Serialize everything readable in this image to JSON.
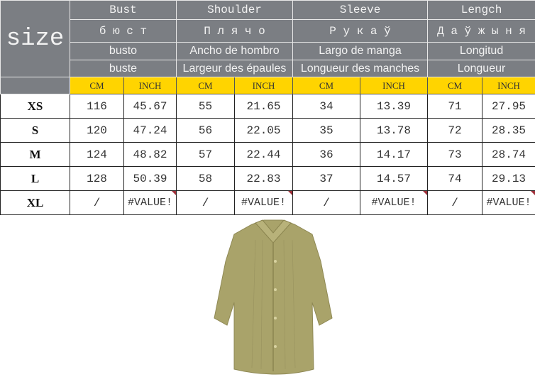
{
  "header": {
    "size_label": "size",
    "groups": [
      {
        "en": "Bust",
        "ru": "б ю с т",
        "es": "busto",
        "fr": "buste"
      },
      {
        "en": "Shoulder",
        "ru": "П л я ч о",
        "es": "Ancho de hombro",
        "fr": "Largeur des épaules"
      },
      {
        "en": "Sleeve",
        "ru": "Р у к а ў",
        "es": "Largo de manga",
        "fr": "Longueur des manches"
      },
      {
        "en": "Lengch",
        "ru": "Д а ў ж ы н я",
        "es": "Longitud",
        "fr": "Longueur"
      }
    ],
    "units": [
      "CM",
      "INCH",
      "CM",
      "INCH",
      "CM",
      "INCH",
      "CM",
      "INCH"
    ]
  },
  "rows": [
    {
      "size": "XS",
      "values": [
        "116",
        "45.67",
        "55",
        "21.65",
        "34",
        "13.39",
        "71",
        "27.95"
      ]
    },
    {
      "size": "S",
      "values": [
        "120",
        "47.24",
        "56",
        "22.05",
        "35",
        "13.78",
        "72",
        "28.35"
      ]
    },
    {
      "size": "M",
      "values": [
        "124",
        "48.82",
        "57",
        "22.44",
        "36",
        "14.17",
        "73",
        "28.74"
      ]
    },
    {
      "size": "L",
      "values": [
        "128",
        "50.39",
        "58",
        "22.83",
        "37",
        "14.57",
        "74",
        "29.13"
      ]
    },
    {
      "size": "XL",
      "values": [
        "/",
        "#VALUE!",
        "/",
        "#VALUE!",
        "/",
        "#VALUE!",
        "/",
        "#VALUE!"
      ]
    }
  ],
  "colors": {
    "header_gray": "#7b7e83",
    "unit_yellow": "#ffd400",
    "shirt": "#a9a36a"
  }
}
